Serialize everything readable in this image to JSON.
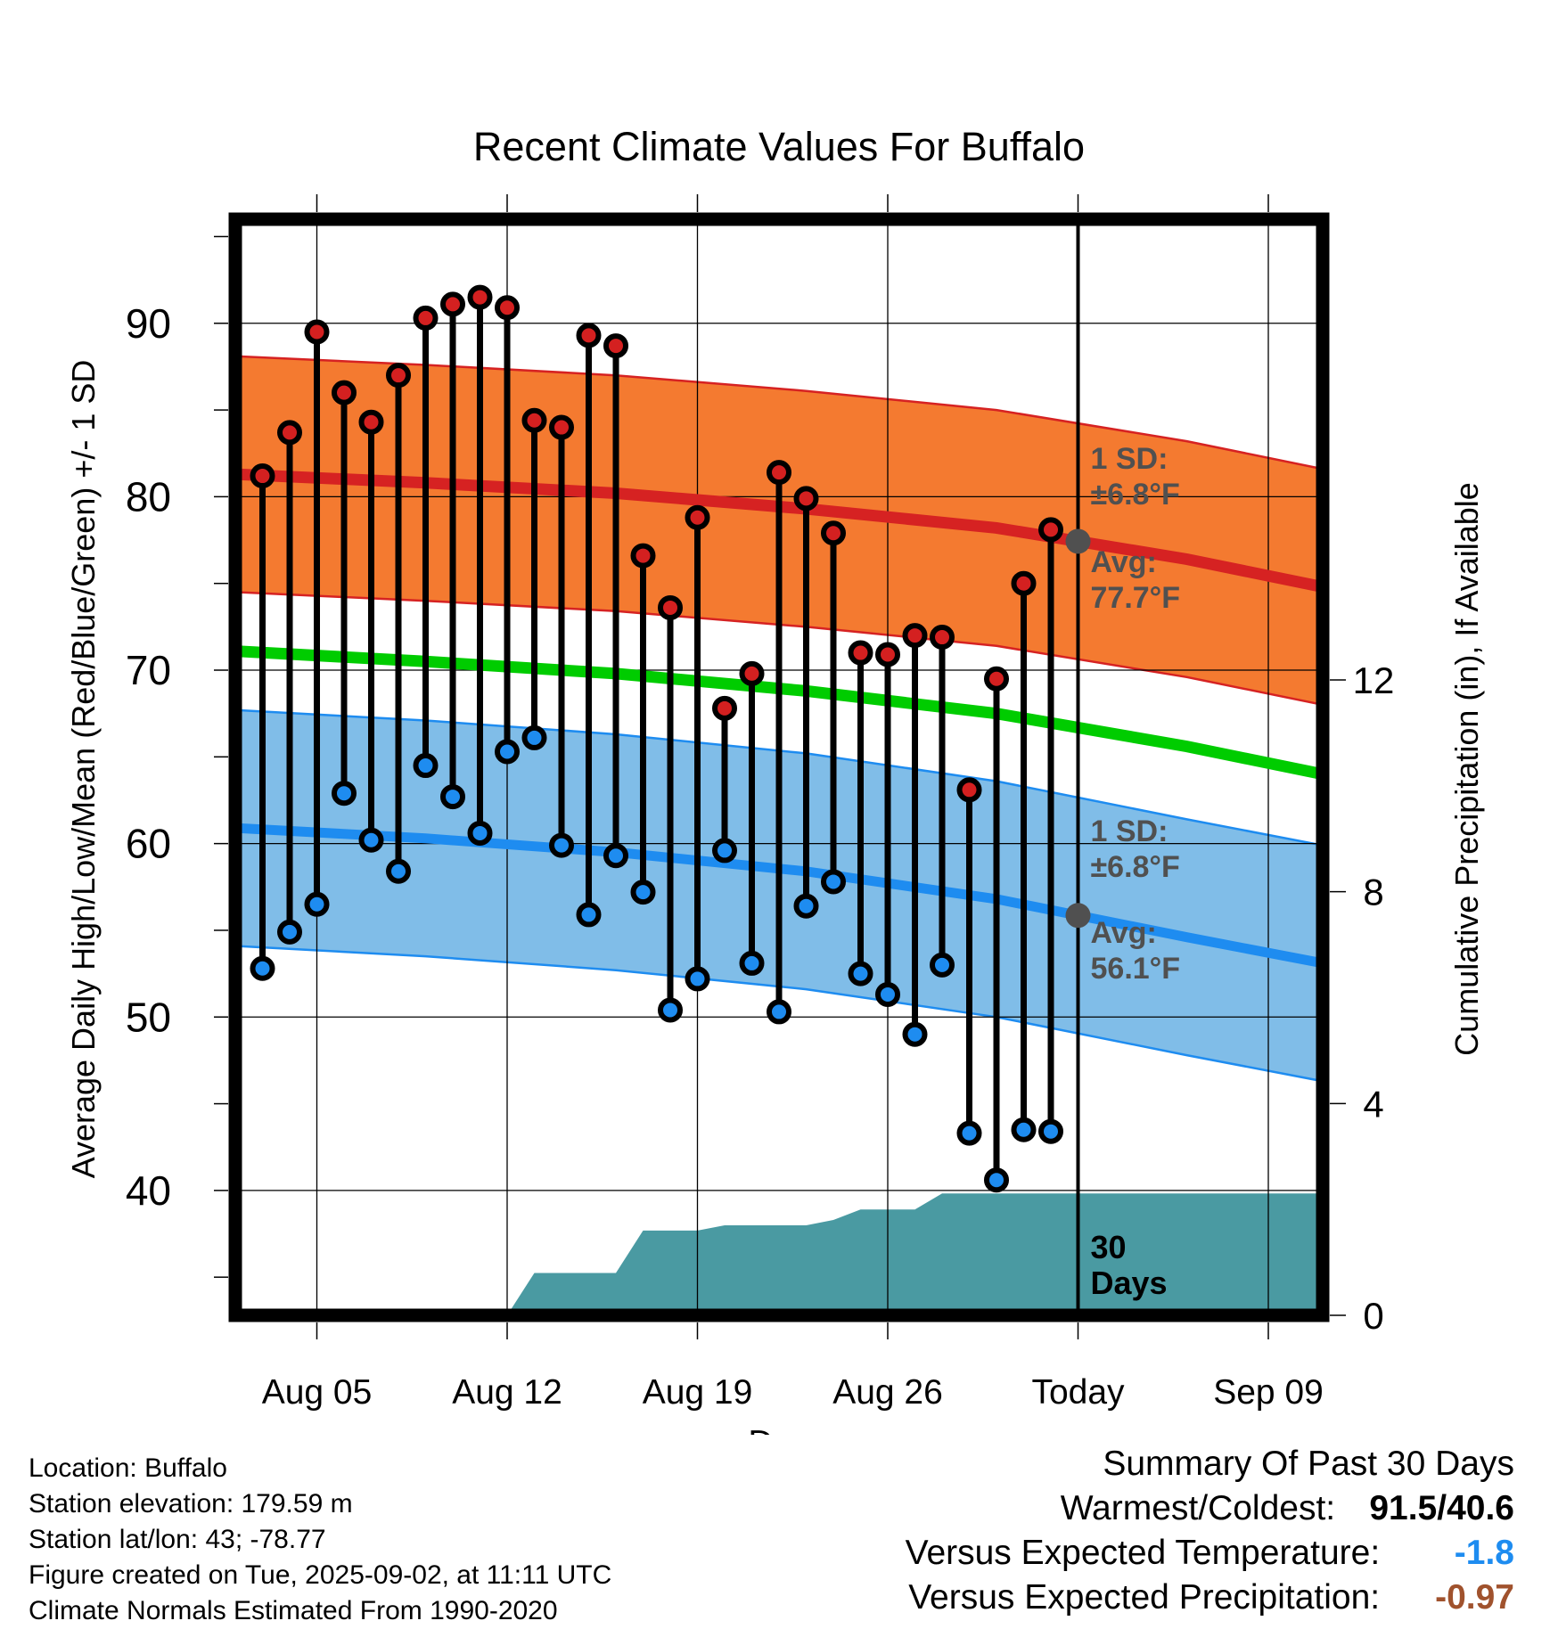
{
  "chart_data": {
    "type": "line",
    "title": "Recent Climate Values For Buffalo",
    "xlabel": "Day",
    "ylabel": "Average Daily High/Low/Mean (Red/Blue/Green) +/- 1 SD",
    "y2label": "Cumulative Precipitation (in), If Available",
    "x_tick_labels": [
      "Aug 05",
      "Aug 12",
      "Aug 19",
      "Aug 26",
      "Today",
      "Sep 09"
    ],
    "y_ticks": [
      40,
      50,
      60,
      70,
      80,
      90
    ],
    "y2_ticks": [
      0,
      4,
      8,
      12
    ],
    "ylim": [
      32.8,
      96
    ],
    "y2lim": [
      0,
      20.7
    ],
    "xlim": [
      "2025-08-02",
      "2025-09-11"
    ],
    "grid": true,
    "today": "2025-09-02",
    "daily": {
      "dates": [
        "2025-08-03",
        "2025-08-04",
        "2025-08-05",
        "2025-08-06",
        "2025-08-07",
        "2025-08-08",
        "2025-08-09",
        "2025-08-10",
        "2025-08-11",
        "2025-08-12",
        "2025-08-13",
        "2025-08-14",
        "2025-08-15",
        "2025-08-16",
        "2025-08-17",
        "2025-08-18",
        "2025-08-19",
        "2025-08-20",
        "2025-08-21",
        "2025-08-22",
        "2025-08-23",
        "2025-08-24",
        "2025-08-25",
        "2025-08-26",
        "2025-08-27",
        "2025-08-28",
        "2025-08-29",
        "2025-08-30",
        "2025-08-31",
        "2025-09-01"
      ],
      "high": [
        81.2,
        83.7,
        89.5,
        86.0,
        84.3,
        87.0,
        90.3,
        91.1,
        91.5,
        90.9,
        84.4,
        84.0,
        89.3,
        88.7,
        76.6,
        73.6,
        78.8,
        67.8,
        69.8,
        81.4,
        79.9,
        77.9,
        71.0,
        70.9,
        72.0,
        71.9,
        63.1,
        69.5,
        75.0,
        78.1
      ],
      "low": [
        52.8,
        54.9,
        56.5,
        62.9,
        60.2,
        58.4,
        64.5,
        62.7,
        60.6,
        65.3,
        66.1,
        59.9,
        55.9,
        59.3,
        57.2,
        50.4,
        52.2,
        59.6,
        53.1,
        50.3,
        56.4,
        57.8,
        52.5,
        51.3,
        49.0,
        53.0,
        43.3,
        40.6,
        43.5,
        43.4
      ]
    },
    "normals": {
      "dates": [
        "2025-08-02",
        "2025-08-09",
        "2025-08-16",
        "2025-08-23",
        "2025-08-30",
        "2025-09-06",
        "2025-09-11"
      ],
      "avg_high": [
        81.3,
        80.8,
        80.2,
        79.3,
        78.2,
        76.4,
        74.8
      ],
      "avg_mean": [
        71.1,
        70.5,
        69.8,
        68.8,
        67.5,
        65.6,
        64.0
      ],
      "avg_low": [
        60.9,
        60.3,
        59.5,
        58.4,
        56.8,
        54.6,
        53.1
      ],
      "sd": 6.8
    },
    "precip_cumulative": {
      "dates": [
        "2025-08-12",
        "2025-08-13",
        "2025-08-14",
        "2025-08-16",
        "2025-08-17",
        "2025-08-19",
        "2025-08-20",
        "2025-08-22",
        "2025-08-23",
        "2025-08-24",
        "2025-08-25",
        "2025-08-27",
        "2025-08-28",
        "2025-09-11"
      ],
      "values": [
        0,
        0.8,
        0.8,
        0.8,
        1.6,
        1.6,
        1.7,
        1.7,
        1.7,
        1.8,
        2.0,
        2.0,
        2.3,
        2.3
      ]
    },
    "annotations": {
      "high_sd_label": [
        "1 SD:",
        "±6.8°F"
      ],
      "high_avg_label": [
        "Avg:",
        "77.7°F"
      ],
      "low_sd_label": [
        "1 SD:",
        "±6.8°F"
      ],
      "low_avg_label": [
        "Avg:",
        "56.1°F"
      ],
      "precip_label": [
        "30",
        "Days"
      ]
    },
    "colors": {
      "high_band": "#f47a30",
      "high_line": "#d62222",
      "mean_line": "#00cc00",
      "low_band": "#80bde8",
      "low_line": "#1e8cf0",
      "precip": "#4a9aa2",
      "high_dot": "#d42020",
      "low_dot": "#1e8cf0",
      "annotation": "#505050"
    }
  },
  "metadata": {
    "location": "Location: Buffalo",
    "elevation": "Station elevation: 179.59 m",
    "latlon": "Station lat/lon: 43; -78.77",
    "created": "Figure created on Tue, 2025-09-02, at 11:11 UTC",
    "normals": "Climate Normals Estimated From 1990-2020"
  },
  "summary": {
    "title": "Summary Of Past 30 Days",
    "warmest_label": "Warmest/Coldest:",
    "warmest_value": "91.5/40.6",
    "temp_label": "Versus Expected Temperature:",
    "temp_value": "-1.8",
    "temp_color": "#1e8cf0",
    "precip_label": "Versus Expected Precipitation:",
    "precip_value": "-0.97",
    "precip_color": "#a0522d"
  }
}
